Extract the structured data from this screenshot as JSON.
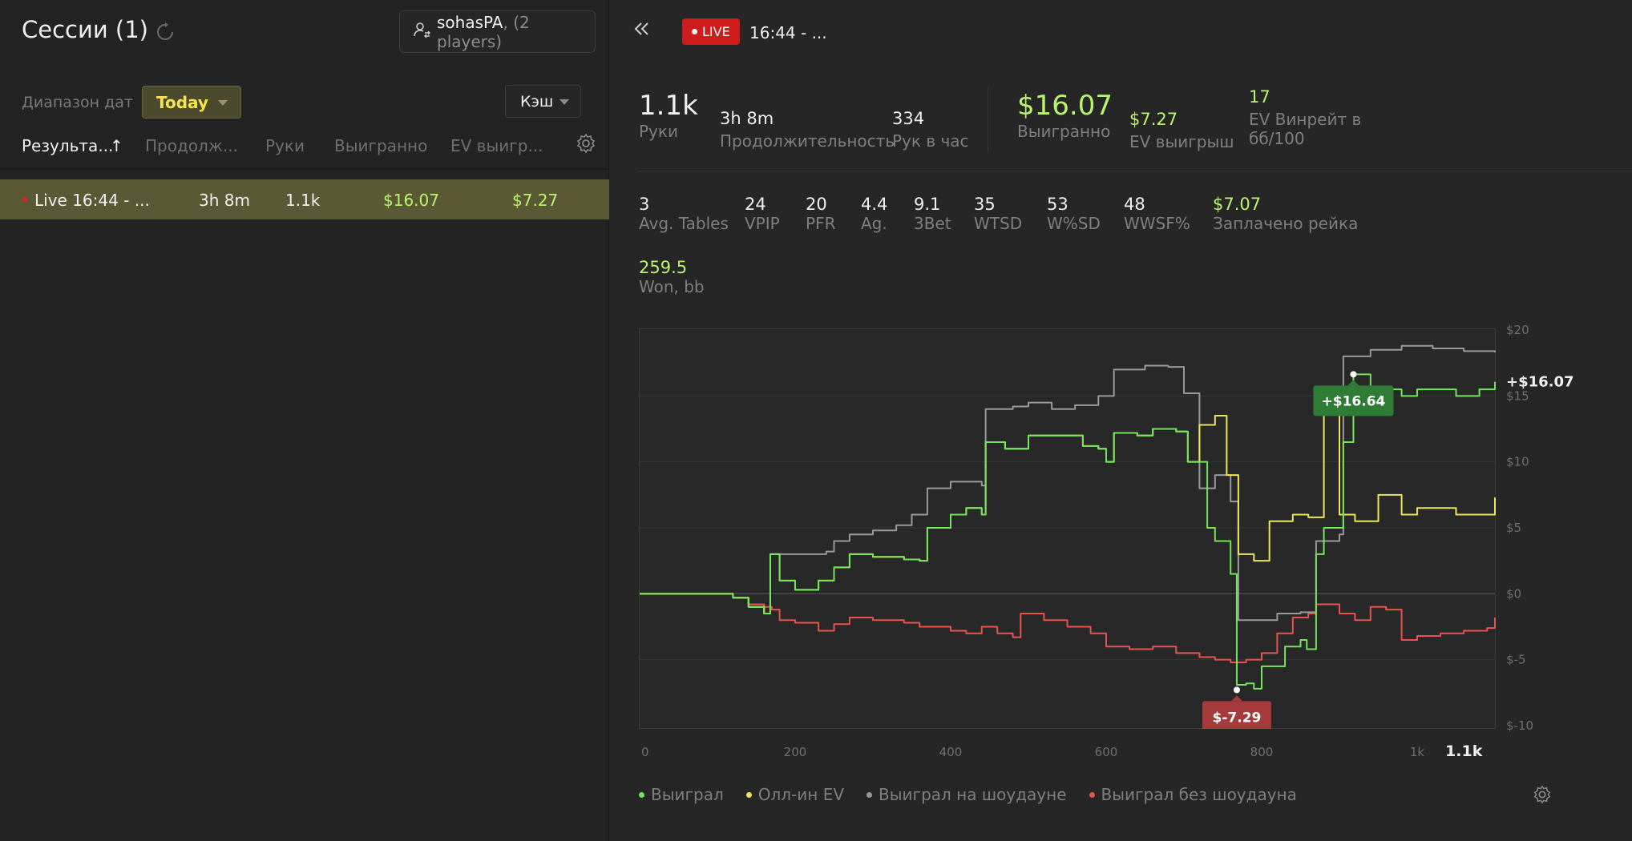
{
  "left": {
    "title": "Сессии (1)",
    "player": {
      "name": "sohasPA",
      "count": ", (2 players)"
    },
    "range_label": "Диапазон дат",
    "range_value": "Today",
    "game_type": "Кэш",
    "columns": [
      "Результа...",
      "Продолж...",
      "Руки",
      "Выигранно",
      "EV выигр..."
    ],
    "sort_indicator": "↑",
    "rows": [
      {
        "name": "Live 16:44 - ...",
        "duration": "3h 8m",
        "hands": "1.1k",
        "won": "$16.07",
        "ev_won": "$7.27"
      }
    ]
  },
  "right": {
    "live_label": "LIVE",
    "session_title": "16:44 - ...",
    "top_stats": [
      {
        "value": "1.1k",
        "label": "Руки"
      },
      {
        "value": "3h 8m",
        "label": "Продолжительность"
      },
      {
        "value": "334",
        "label": "Рук в час"
      },
      {
        "value": "$16.07",
        "label": "Выигранно"
      },
      {
        "value": "$7.27",
        "label": "EV выигрыш"
      },
      {
        "value": "17",
        "label": "EV Винрейт в",
        "label2": "бб/100"
      }
    ],
    "stats": [
      {
        "value": "3",
        "label": "Avg. Tables"
      },
      {
        "value": "24",
        "label": "VPIP"
      },
      {
        "value": "20",
        "label": "PFR"
      },
      {
        "value": "4.4",
        "label": "Ag."
      },
      {
        "value": "9.1",
        "label": "3Bet"
      },
      {
        "value": "35",
        "label": "WTSD"
      },
      {
        "value": "53",
        "label": "W%SD"
      },
      {
        "value": "48",
        "label": "WWSF%"
      },
      {
        "value": "$7.07",
        "label": "Заплачено рейка"
      }
    ],
    "won_bb": {
      "value": "259.5",
      "label": "Won, bb"
    },
    "legend": [
      "Выиграл",
      "Олл-ин EV",
      "Выиграл на шоудауне",
      "Выиграл без шоудауна"
    ],
    "colors": {
      "won": "#72e75a",
      "allin_ev": "#eee65a",
      "showdown": "#9a9a9a",
      "non_showdown": "#e8534d",
      "accent_green": "#b9f56a",
      "live_red": "#cf1b1b"
    }
  },
  "chart_data": {
    "type": "line",
    "xlim": [
      0,
      1100
    ],
    "ylim": [
      -10,
      20
    ],
    "x_ticks": [
      "0",
      "200",
      "400",
      "600",
      "800",
      "1k",
      "1.1k"
    ],
    "y_ticks": [
      "$20",
      "$15",
      "$10",
      "$5",
      "$0",
      "$-5",
      "$-10"
    ],
    "final_label": "+$16.07",
    "max_label": "+$16.64",
    "min_label": "$-7.29",
    "max_point": [
      918,
      16.64
    ],
    "min_point": [
      768,
      -7.29
    ],
    "series": [
      {
        "name": "Выиграл",
        "points": [
          [
            0,
            0
          ],
          [
            80,
            0
          ],
          [
            120,
            -0.3
          ],
          [
            140,
            -1
          ],
          [
            160,
            -1.5
          ],
          [
            168,
            3
          ],
          [
            180,
            1
          ],
          [
            200,
            0.3
          ],
          [
            230,
            1
          ],
          [
            250,
            2
          ],
          [
            270,
            3
          ],
          [
            300,
            2.8
          ],
          [
            340,
            2.6
          ],
          [
            360,
            2.5
          ],
          [
            370,
            5
          ],
          [
            400,
            6
          ],
          [
            420,
            6.5
          ],
          [
            440,
            6
          ],
          [
            445,
            11.5
          ],
          [
            470,
            11
          ],
          [
            500,
            12
          ],
          [
            540,
            12
          ],
          [
            570,
            11.2
          ],
          [
            590,
            11
          ],
          [
            600,
            10
          ],
          [
            610,
            12.2
          ],
          [
            640,
            12
          ],
          [
            660,
            12.5
          ],
          [
            690,
            12.3
          ],
          [
            705,
            10
          ],
          [
            730,
            5
          ],
          [
            740,
            4
          ],
          [
            760,
            1.5
          ],
          [
            768,
            -6.9
          ],
          [
            780,
            -6.8
          ],
          [
            790,
            -7.2
          ],
          [
            800,
            -5.5
          ],
          [
            830,
            -4
          ],
          [
            850,
            -3.5
          ],
          [
            858,
            -4.2
          ],
          [
            870,
            3
          ],
          [
            880,
            5
          ],
          [
            905,
            11.5
          ],
          [
            918,
            16.64
          ],
          [
            940,
            15.5
          ],
          [
            980,
            15
          ],
          [
            1000,
            15.5
          ],
          [
            1050,
            15
          ],
          [
            1080,
            15.5
          ],
          [
            1100,
            16.07
          ]
        ]
      },
      {
        "name": "Олл-ин EV",
        "points": [
          [
            0,
            0
          ],
          [
            80,
            0
          ],
          [
            120,
            -0.3
          ],
          [
            140,
            -1
          ],
          [
            160,
            -1.5
          ],
          [
            168,
            3
          ],
          [
            180,
            1
          ],
          [
            200,
            0.3
          ],
          [
            230,
            1
          ],
          [
            250,
            2
          ],
          [
            270,
            3
          ],
          [
            300,
            2.8
          ],
          [
            340,
            2.6
          ],
          [
            360,
            2.5
          ],
          [
            370,
            5
          ],
          [
            400,
            6
          ],
          [
            420,
            6.5
          ],
          [
            440,
            6
          ],
          [
            445,
            11.5
          ],
          [
            470,
            11
          ],
          [
            500,
            12
          ],
          [
            540,
            12
          ],
          [
            570,
            11.2
          ],
          [
            590,
            11
          ],
          [
            600,
            10
          ],
          [
            610,
            12.2
          ],
          [
            640,
            12
          ],
          [
            660,
            12.5
          ],
          [
            690,
            12.3
          ],
          [
            705,
            10
          ],
          [
            720,
            12.8
          ],
          [
            740,
            13.5
          ],
          [
            755,
            9
          ],
          [
            770,
            3
          ],
          [
            790,
            2.5
          ],
          [
            810,
            5.5
          ],
          [
            840,
            6
          ],
          [
            860,
            5.8
          ],
          [
            880,
            14
          ],
          [
            900,
            6
          ],
          [
            920,
            5.5
          ],
          [
            950,
            7.5
          ],
          [
            980,
            6
          ],
          [
            1000,
            6.5
          ],
          [
            1050,
            6
          ],
          [
            1080,
            6
          ],
          [
            1100,
            7.3
          ]
        ]
      },
      {
        "name": "Выиграл на шоудауне",
        "points": [
          [
            0,
            0
          ],
          [
            80,
            0
          ],
          [
            120,
            -0.3
          ],
          [
            140,
            -1
          ],
          [
            160,
            -1.5
          ],
          [
            168,
            3
          ],
          [
            180,
            3
          ],
          [
            240,
            3.2
          ],
          [
            250,
            4
          ],
          [
            270,
            4.5
          ],
          [
            300,
            4.8
          ],
          [
            330,
            5.2
          ],
          [
            350,
            6
          ],
          [
            370,
            8
          ],
          [
            400,
            8.5
          ],
          [
            440,
            8.2
          ],
          [
            445,
            14
          ],
          [
            480,
            14.2
          ],
          [
            500,
            14.5
          ],
          [
            530,
            14
          ],
          [
            560,
            14.3
          ],
          [
            590,
            15
          ],
          [
            610,
            17
          ],
          [
            650,
            17.3
          ],
          [
            680,
            17.2
          ],
          [
            700,
            15.2
          ],
          [
            720,
            8
          ],
          [
            740,
            9
          ],
          [
            760,
            7
          ],
          [
            770,
            -2
          ],
          [
            800,
            -2
          ],
          [
            820,
            -1.5
          ],
          [
            850,
            -1.4
          ],
          [
            870,
            4
          ],
          [
            900,
            4.5
          ],
          [
            905,
            18
          ],
          [
            940,
            18.5
          ],
          [
            980,
            18.8
          ],
          [
            1020,
            18.6
          ],
          [
            1060,
            18.4
          ],
          [
            1100,
            18.3
          ]
        ]
      },
      {
        "name": "Выиграл без шоудауна",
        "points": [
          [
            0,
            0
          ],
          [
            80,
            0
          ],
          [
            120,
            -0.3
          ],
          [
            140,
            -0.8
          ],
          [
            160,
            -1
          ],
          [
            170,
            -1.2
          ],
          [
            180,
            -2
          ],
          [
            200,
            -2.2
          ],
          [
            230,
            -2.8
          ],
          [
            250,
            -2.3
          ],
          [
            270,
            -1.8
          ],
          [
            300,
            -2
          ],
          [
            340,
            -2.2
          ],
          [
            360,
            -2.5
          ],
          [
            400,
            -2.8
          ],
          [
            420,
            -3
          ],
          [
            440,
            -2.5
          ],
          [
            460,
            -3
          ],
          [
            480,
            -3.3
          ],
          [
            490,
            -1.5
          ],
          [
            520,
            -2
          ],
          [
            550,
            -2.5
          ],
          [
            580,
            -3
          ],
          [
            600,
            -4
          ],
          [
            630,
            -4.2
          ],
          [
            660,
            -4
          ],
          [
            690,
            -4.5
          ],
          [
            720,
            -4.8
          ],
          [
            740,
            -5
          ],
          [
            760,
            -5.2
          ],
          [
            780,
            -5
          ],
          [
            800,
            -4.5
          ],
          [
            820,
            -3
          ],
          [
            840,
            -1.8
          ],
          [
            860,
            -1.5
          ],
          [
            870,
            -0.8
          ],
          [
            900,
            -1.5
          ],
          [
            920,
            -2
          ],
          [
            940,
            -1
          ],
          [
            960,
            -1.2
          ],
          [
            980,
            -3.5
          ],
          [
            1000,
            -3.2
          ],
          [
            1030,
            -3
          ],
          [
            1060,
            -2.8
          ],
          [
            1090,
            -2.6
          ],
          [
            1100,
            -1.8
          ]
        ]
      }
    ]
  }
}
